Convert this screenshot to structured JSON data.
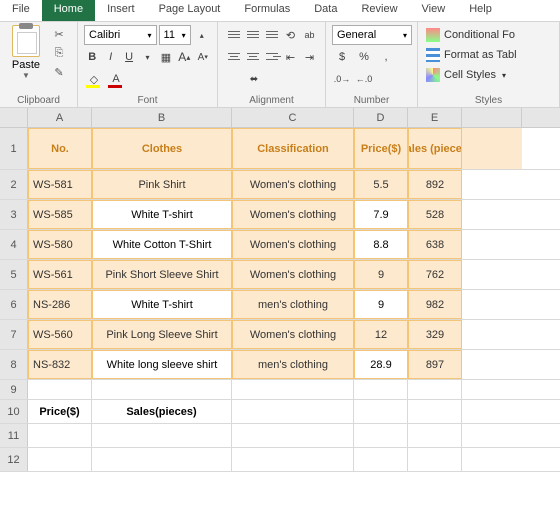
{
  "menu": {
    "items": [
      "File",
      "Home",
      "Insert",
      "Page Layout",
      "Formulas",
      "Data",
      "Review",
      "View",
      "Help"
    ],
    "active": 1
  },
  "ribbon": {
    "clipboard": {
      "label": "Clipboard",
      "paste": "Paste"
    },
    "font": {
      "label": "Font",
      "name": "Calibri",
      "size": "11",
      "bold": "B",
      "italic": "I",
      "underline": "U"
    },
    "alignment": {
      "label": "Alignment",
      "wrap": "ab"
    },
    "number": {
      "label": "Number",
      "format": "General"
    },
    "styles": {
      "label": "Styles",
      "cond": "Conditional Fo",
      "table": "Format as Tabl",
      "cell": "Cell Styles"
    }
  },
  "cols": {
    "letters": [
      "A",
      "B",
      "C",
      "D",
      "E"
    ],
    "widths": [
      64,
      140,
      122,
      54,
      54
    ]
  },
  "table": {
    "headers": [
      "No.",
      "Clothes",
      "Classification",
      "Price($)",
      "Sales (pieces)"
    ],
    "rows": [
      {
        "no": "WS-581",
        "clothes": "Pink Shirt",
        "class": "Women's clothing",
        "price": "5.5",
        "sales": "892",
        "hl": [
          0,
          1,
          2,
          3,
          4
        ]
      },
      {
        "no": "WS-585",
        "clothes": "White T-shirt",
        "class": "Women's clothing",
        "price": "7.9",
        "sales": "528",
        "hl": [
          0,
          2,
          4
        ]
      },
      {
        "no": "WS-580",
        "clothes": "White Cotton T-Shirt",
        "class": "Women's clothing",
        "price": "8.8",
        "sales": "638",
        "hl": [
          0,
          2,
          4
        ]
      },
      {
        "no": "WS-561",
        "clothes": "Pink Short Sleeve Shirt",
        "class": "Women's clothing",
        "price": "9",
        "sales": "762",
        "hl": [
          0,
          1,
          2,
          3,
          4
        ]
      },
      {
        "no": "NS-286",
        "clothes": "White T-shirt",
        "class": "men's clothing",
        "price": "9",
        "sales": "982",
        "hl": [
          0,
          2,
          4
        ]
      },
      {
        "no": "WS-560",
        "clothes": "Pink Long Sleeve Shirt",
        "class": "Women's clothing",
        "price": "12",
        "sales": "329",
        "hl": [
          0,
          1,
          2,
          3,
          4
        ]
      },
      {
        "no": "NS-832",
        "clothes": "White long sleeve shirt",
        "class": "men's clothing",
        "price": "28.9",
        "sales": "897",
        "hl": [
          0,
          2,
          4
        ]
      }
    ]
  },
  "summary": {
    "a": "Price($)",
    "b": "Sales(pieces)"
  },
  "colors": {
    "accent": "#217346",
    "hdrBg": "#fde9cd",
    "hdrTxt": "#c77f1a",
    "border": "#f4c576"
  }
}
